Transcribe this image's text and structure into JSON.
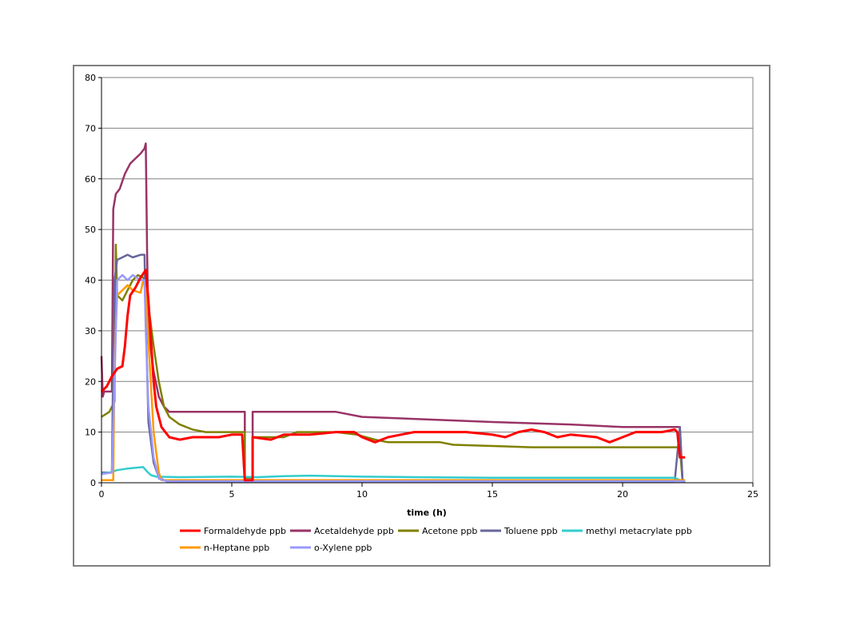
{
  "chart_data": {
    "type": "line",
    "title": "",
    "xlabel": "time (h)",
    "ylabel": "",
    "xlim": [
      0,
      25
    ],
    "ylim": [
      0,
      80
    ],
    "xticks": [
      0,
      5,
      10,
      15,
      20,
      25
    ],
    "yticks": [
      0,
      10,
      20,
      30,
      40,
      50,
      60,
      70,
      80
    ],
    "grid": "horizontal major gridlines",
    "legend_position": "bottom",
    "series": [
      {
        "name": "Formaldehyde ppb",
        "color": "#ff0000",
        "points": [
          [
            0,
            18
          ],
          [
            0.2,
            19
          ],
          [
            0.4,
            21
          ],
          [
            0.6,
            22.5
          ],
          [
            0.8,
            23
          ],
          [
            0.9,
            27
          ],
          [
            1.0,
            33
          ],
          [
            1.1,
            37
          ],
          [
            1.3,
            38.5
          ],
          [
            1.5,
            40.5
          ],
          [
            1.7,
            42
          ],
          [
            1.8,
            36
          ],
          [
            1.9,
            28
          ],
          [
            2.0,
            20
          ],
          [
            2.1,
            15
          ],
          [
            2.3,
            11
          ],
          [
            2.6,
            9
          ],
          [
            3.0,
            8.5
          ],
          [
            3.5,
            9
          ],
          [
            4.0,
            9
          ],
          [
            4.5,
            9
          ],
          [
            5.0,
            9.5
          ],
          [
            5.4,
            9.5
          ],
          [
            5.5,
            0.5
          ],
          [
            5.8,
            0.5
          ],
          [
            5.8,
            9
          ],
          [
            6.5,
            8.5
          ],
          [
            7.0,
            9.5
          ],
          [
            8.0,
            9.5
          ],
          [
            9.0,
            10
          ],
          [
            9.7,
            10
          ],
          [
            10.0,
            9
          ],
          [
            10.5,
            8
          ],
          [
            11.0,
            9
          ],
          [
            12.0,
            10
          ],
          [
            13.0,
            10
          ],
          [
            14.0,
            10
          ],
          [
            15.0,
            9.5
          ],
          [
            15.5,
            9
          ],
          [
            16.0,
            10
          ],
          [
            16.5,
            10.5
          ],
          [
            17.0,
            10
          ],
          [
            17.5,
            9
          ],
          [
            18.0,
            9.5
          ],
          [
            19.0,
            9
          ],
          [
            19.5,
            8
          ],
          [
            20.0,
            9
          ],
          [
            20.5,
            10
          ],
          [
            21.0,
            10
          ],
          [
            21.5,
            10
          ],
          [
            22.0,
            10.5
          ],
          [
            22.1,
            10
          ],
          [
            22.2,
            5
          ],
          [
            22.4,
            5
          ]
        ]
      },
      {
        "name": "Acetaldehyde ppb",
        "color": "#993366",
        "points": [
          [
            0,
            25
          ],
          [
            0.05,
            17
          ],
          [
            0.1,
            18
          ],
          [
            0.4,
            18
          ],
          [
            0.45,
            54
          ],
          [
            0.55,
            57
          ],
          [
            0.7,
            58
          ],
          [
            0.9,
            61
          ],
          [
            1.1,
            63
          ],
          [
            1.3,
            64
          ],
          [
            1.5,
            65
          ],
          [
            1.65,
            66
          ],
          [
            1.7,
            67
          ],
          [
            1.75,
            45
          ],
          [
            1.8,
            30
          ],
          [
            2.0,
            22
          ],
          [
            2.2,
            17
          ],
          [
            2.4,
            15
          ],
          [
            2.6,
            14
          ],
          [
            5.5,
            14
          ],
          [
            5.5,
            1
          ],
          [
            5.8,
            1
          ],
          [
            5.8,
            14
          ],
          [
            9.0,
            14
          ],
          [
            10.0,
            13
          ],
          [
            15.0,
            12
          ],
          [
            18.0,
            11.5
          ],
          [
            20.0,
            11
          ],
          [
            22.2,
            11
          ],
          [
            22.3,
            0.3
          ],
          [
            22.4,
            0.3
          ]
        ]
      },
      {
        "name": "Acetone ppb",
        "color": "#808000",
        "points": [
          [
            0,
            13
          ],
          [
            0.3,
            14
          ],
          [
            0.5,
            16
          ],
          [
            0.55,
            47
          ],
          [
            0.6,
            37
          ],
          [
            0.8,
            36
          ],
          [
            1.0,
            38
          ],
          [
            1.2,
            40
          ],
          [
            1.4,
            41
          ],
          [
            1.6,
            40.5
          ],
          [
            1.7,
            39
          ],
          [
            1.8,
            35
          ],
          [
            2.0,
            27
          ],
          [
            2.2,
            20
          ],
          [
            2.4,
            15
          ],
          [
            2.6,
            13
          ],
          [
            3.0,
            11.5
          ],
          [
            3.5,
            10.5
          ],
          [
            4.0,
            10
          ],
          [
            5.5,
            10
          ],
          [
            5.5,
            1
          ],
          [
            5.8,
            1
          ],
          [
            5.8,
            9
          ],
          [
            7.0,
            9
          ],
          [
            7.5,
            10
          ],
          [
            9.0,
            10
          ],
          [
            9.8,
            9.5
          ],
          [
            10.5,
            8.5
          ],
          [
            11.0,
            8
          ],
          [
            13.0,
            8
          ],
          [
            13.5,
            7.5
          ],
          [
            16.5,
            7
          ],
          [
            22.2,
            7
          ],
          [
            22.3,
            0.3
          ],
          [
            22.4,
            0.3
          ]
        ]
      },
      {
        "name": "Toluene ppb",
        "color": "#666699",
        "points": [
          [
            0,
            2
          ],
          [
            0.4,
            2
          ],
          [
            0.45,
            25
          ],
          [
            0.5,
            40
          ],
          [
            0.6,
            44
          ],
          [
            0.8,
            44.5
          ],
          [
            1.0,
            45
          ],
          [
            1.2,
            44.5
          ],
          [
            1.5,
            45
          ],
          [
            1.65,
            45
          ],
          [
            1.7,
            33
          ],
          [
            1.8,
            12
          ],
          [
            2.0,
            4
          ],
          [
            2.2,
            1
          ],
          [
            2.5,
            0.3
          ],
          [
            22.0,
            0.3
          ],
          [
            22.2,
            11
          ],
          [
            22.3,
            0.3
          ],
          [
            22.4,
            0.3
          ]
        ]
      },
      {
        "name": "methyl metacrylate ppb",
        "color": "#33cccc",
        "points": [
          [
            0,
            1.8
          ],
          [
            0.3,
            2
          ],
          [
            0.6,
            2.5
          ],
          [
            1.0,
            2.8
          ],
          [
            1.4,
            3
          ],
          [
            1.6,
            3.1
          ],
          [
            1.75,
            2.2
          ],
          [
            1.9,
            1.5
          ],
          [
            2.1,
            1.2
          ],
          [
            3.0,
            1.1
          ],
          [
            5.0,
            1.2
          ],
          [
            6.0,
            1.1
          ],
          [
            7.0,
            1.3
          ],
          [
            8.0,
            1.4
          ],
          [
            9.0,
            1.3
          ],
          [
            10.0,
            1.2
          ],
          [
            12.0,
            1.1
          ],
          [
            15.0,
            1.0
          ],
          [
            18.0,
            1.0
          ],
          [
            20.0,
            1.0
          ],
          [
            22.0,
            1.0
          ],
          [
            22.2,
            0.5
          ]
        ]
      },
      {
        "name": "n-Heptane ppb",
        "color": "#ff9900",
        "points": [
          [
            0,
            0.5
          ],
          [
            0.45,
            0.5
          ],
          [
            0.5,
            25
          ],
          [
            0.6,
            37
          ],
          [
            0.8,
            38
          ],
          [
            1.0,
            39
          ],
          [
            1.2,
            38
          ],
          [
            1.5,
            37.5
          ],
          [
            1.6,
            40
          ],
          [
            1.7,
            38
          ],
          [
            1.8,
            28
          ],
          [
            2.0,
            10
          ],
          [
            2.2,
            2
          ],
          [
            2.3,
            0.5
          ],
          [
            22.4,
            0.5
          ]
        ]
      },
      {
        "name": "o-Xylene ppb",
        "color": "#9999ff",
        "points": [
          [
            0,
            1.7
          ],
          [
            0.4,
            2
          ],
          [
            0.5,
            20
          ],
          [
            0.6,
            40
          ],
          [
            0.8,
            41
          ],
          [
            1.0,
            40
          ],
          [
            1.2,
            41
          ],
          [
            1.5,
            40
          ],
          [
            1.65,
            40
          ],
          [
            1.7,
            30
          ],
          [
            1.8,
            15
          ],
          [
            2.0,
            5
          ],
          [
            2.2,
            0.8
          ],
          [
            2.5,
            0.3
          ],
          [
            22.4,
            0.3
          ]
        ]
      }
    ]
  }
}
